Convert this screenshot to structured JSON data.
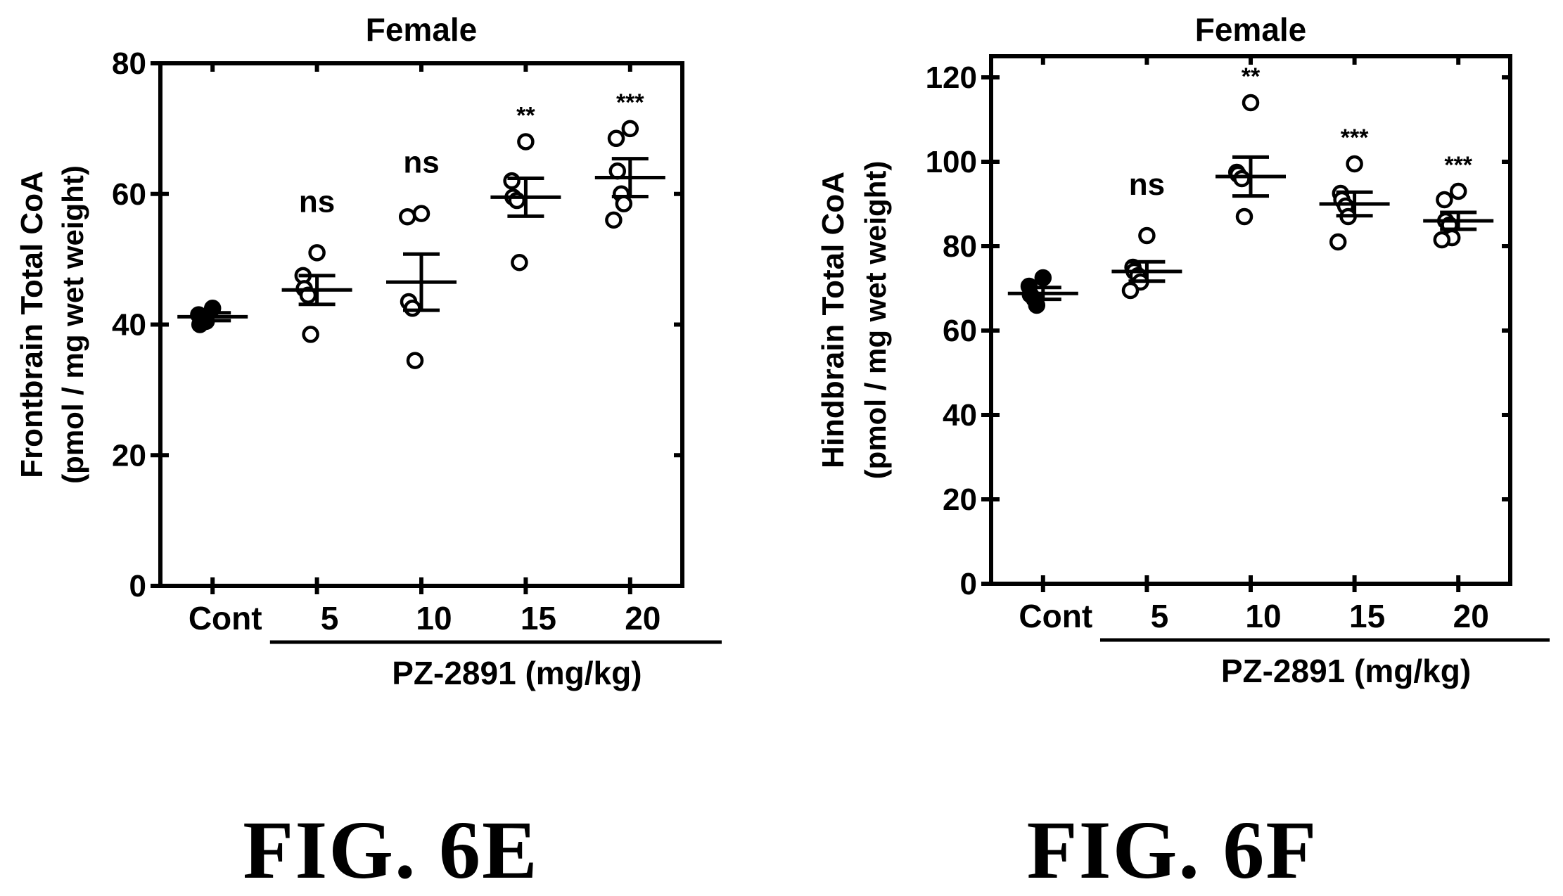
{
  "figures": [
    {
      "label": "FIG. 6E",
      "chart_data": {
        "type": "scatter",
        "title": "Female",
        "ylabel_line1": "Frontbrain Total CoA",
        "ylabel_line2": "(pmol / mg wet weight)",
        "xlabel": "PZ-2891  (mg/kg)",
        "categories": [
          "Cont",
          "5",
          "10",
          "15",
          "20"
        ],
        "ylim": [
          0,
          80
        ],
        "yticks": [
          0,
          20,
          40,
          60,
          80
        ],
        "groups": [
          {
            "category": "Cont",
            "points": [
              42.5,
              41.5,
              40.0,
              41.0,
              40.5
            ],
            "mean": 41.2,
            "sem": 0.6,
            "significance": "",
            "filled": true
          },
          {
            "category": "5",
            "points": [
              51.0,
              47.5,
              45.5,
              44.5,
              38.5
            ],
            "mean": 45.3,
            "sem": 2.2,
            "significance": "ns",
            "filled": false
          },
          {
            "category": "10",
            "points": [
              57.0,
              56.5,
              43.5,
              42.5,
              34.5
            ],
            "mean": 46.5,
            "sem": 4.3,
            "significance": "ns",
            "filled": false
          },
          {
            "category": "15",
            "points": [
              68.0,
              62.0,
              59.5,
              59.0,
              49.5
            ],
            "mean": 59.5,
            "sem": 2.9,
            "significance": "**",
            "filled": false
          },
          {
            "category": "20",
            "points": [
              70.0,
              68.5,
              63.5,
              60.0,
              58.5,
              56.0
            ],
            "mean": 62.5,
            "sem": 2.9,
            "significance": "***",
            "filled": false
          }
        ]
      }
    },
    {
      "label": "FIG. 6F",
      "chart_data": {
        "type": "scatter",
        "title": "Female",
        "ylabel_line1": "Hindbrain Total CoA",
        "ylabel_line2": "(pmol / mg wet weight)",
        "xlabel": "PZ-2891  (mg/kg)",
        "categories": [
          "Cont",
          "5",
          "10",
          "15",
          "20"
        ],
        "ylim": [
          0,
          125
        ],
        "yticks": [
          0,
          20,
          40,
          60,
          80,
          100,
          120
        ],
        "groups": [
          {
            "category": "Cont",
            "points": [
              72.5,
              70.5,
              68.5,
              67.5,
              66.0
            ],
            "mean": 68.8,
            "sem": 1.4,
            "significance": "",
            "filled": true
          },
          {
            "category": "5",
            "points": [
              82.5,
              75.0,
              74.0,
              73.0,
              71.5,
              69.5
            ],
            "mean": 74.0,
            "sem": 2.3,
            "significance": "ns",
            "filled": false
          },
          {
            "category": "10",
            "points": [
              114.0,
              97.5,
              97.0,
              96.0,
              87.0
            ],
            "mean": 96.5,
            "sem": 4.6,
            "significance": "**",
            "filled": false
          },
          {
            "category": "15",
            "points": [
              99.5,
              92.5,
              91.0,
              89.5,
              87.0,
              81.0
            ],
            "mean": 90.0,
            "sem": 2.8,
            "significance": "***",
            "filled": false
          },
          {
            "category": "20",
            "points": [
              93.0,
              91.0,
              86.0,
              85.0,
              82.0,
              81.5
            ],
            "mean": 86.0,
            "sem": 2.0,
            "significance": "***",
            "filled": false
          }
        ]
      }
    }
  ]
}
